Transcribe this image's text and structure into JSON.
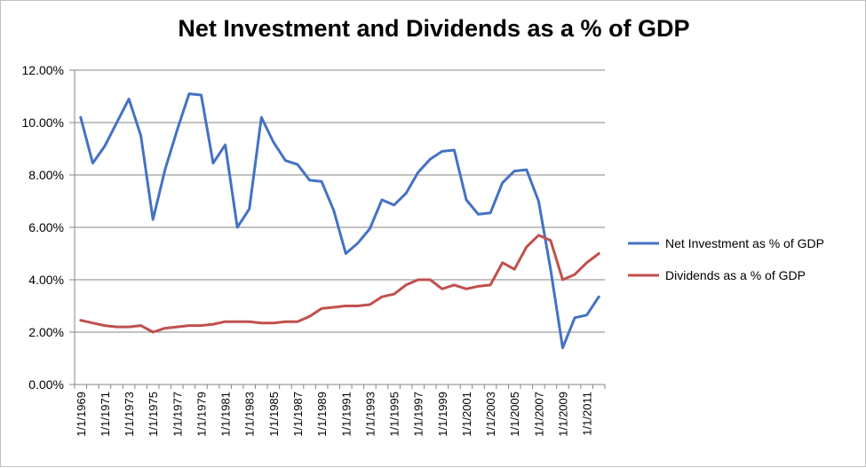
{
  "chart_data": {
    "type": "line",
    "title": "Net Investment and Dividends as a % of GDP",
    "x": [
      "1/1/1969",
      "1/1/1970",
      "1/1/1971",
      "1/1/1972",
      "1/1/1973",
      "1/1/1974",
      "1/1/1975",
      "1/1/1976",
      "1/1/1977",
      "1/1/1978",
      "1/1/1979",
      "1/1/1980",
      "1/1/1981",
      "1/1/1982",
      "1/1/1983",
      "1/1/1984",
      "1/1/1985",
      "1/1/1986",
      "1/1/1987",
      "1/1/1988",
      "1/1/1989",
      "1/1/1990",
      "1/1/1991",
      "1/1/1992",
      "1/1/1993",
      "1/1/1994",
      "1/1/1995",
      "1/1/1996",
      "1/1/1997",
      "1/1/1998",
      "1/1/1999",
      "1/1/2000",
      "1/1/2001",
      "1/1/2002",
      "1/1/2003",
      "1/1/2004",
      "1/1/2005",
      "1/1/2006",
      "1/1/2007",
      "1/1/2008",
      "1/1/2009",
      "1/1/2010",
      "1/1/2011",
      "1/1/2012"
    ],
    "tick_labels": [
      "1/1/1969",
      "1/1/1971",
      "1/1/1973",
      "1/1/1975",
      "1/1/1977",
      "1/1/1979",
      "1/1/1981",
      "1/1/1983",
      "1/1/1985",
      "1/1/1987",
      "1/1/1989",
      "1/1/1991",
      "1/1/1993",
      "1/1/1995",
      "1/1/1997",
      "1/1/1999",
      "1/1/2001",
      "1/1/2003",
      "1/1/2005",
      "1/1/2007",
      "1/1/2009",
      "1/1/2011"
    ],
    "y_ticks": [
      "0.00%",
      "2.00%",
      "4.00%",
      "6.00%",
      "8.00%",
      "10.00%",
      "12.00%"
    ],
    "ylim": [
      0,
      12
    ],
    "grid": true,
    "legend_position": "right",
    "series": [
      {
        "name": "Net Investment as % of GDP",
        "color": "#4472c4",
        "values": [
          10.2,
          8.45,
          9.1,
          10.0,
          10.9,
          9.5,
          6.3,
          8.2,
          9.7,
          11.1,
          11.05,
          8.45,
          9.15,
          6.0,
          6.7,
          10.2,
          9.25,
          8.55,
          8.4,
          7.8,
          7.75,
          6.65,
          5.0,
          5.4,
          5.95,
          7.05,
          6.85,
          7.3,
          8.1,
          8.6,
          8.9,
          8.95,
          7.05,
          6.5,
          6.55,
          7.7,
          8.15,
          8.2,
          7.0,
          4.4,
          1.4,
          2.55,
          2.65,
          3.35
        ]
      },
      {
        "name": "Dividends as a % of GDP",
        "color": "#c0504d",
        "values": [
          2.45,
          2.35,
          2.25,
          2.2,
          2.2,
          2.25,
          2.0,
          2.15,
          2.2,
          2.25,
          2.25,
          2.3,
          2.4,
          2.4,
          2.4,
          2.35,
          2.35,
          2.4,
          2.4,
          2.6,
          2.9,
          2.95,
          3.0,
          3.0,
          3.05,
          3.35,
          3.45,
          3.8,
          4.0,
          4.0,
          3.65,
          3.8,
          3.65,
          3.75,
          3.8,
          4.65,
          4.4,
          5.25,
          5.7,
          5.5,
          4.0,
          4.2,
          4.65,
          5.0
        ]
      }
    ]
  }
}
